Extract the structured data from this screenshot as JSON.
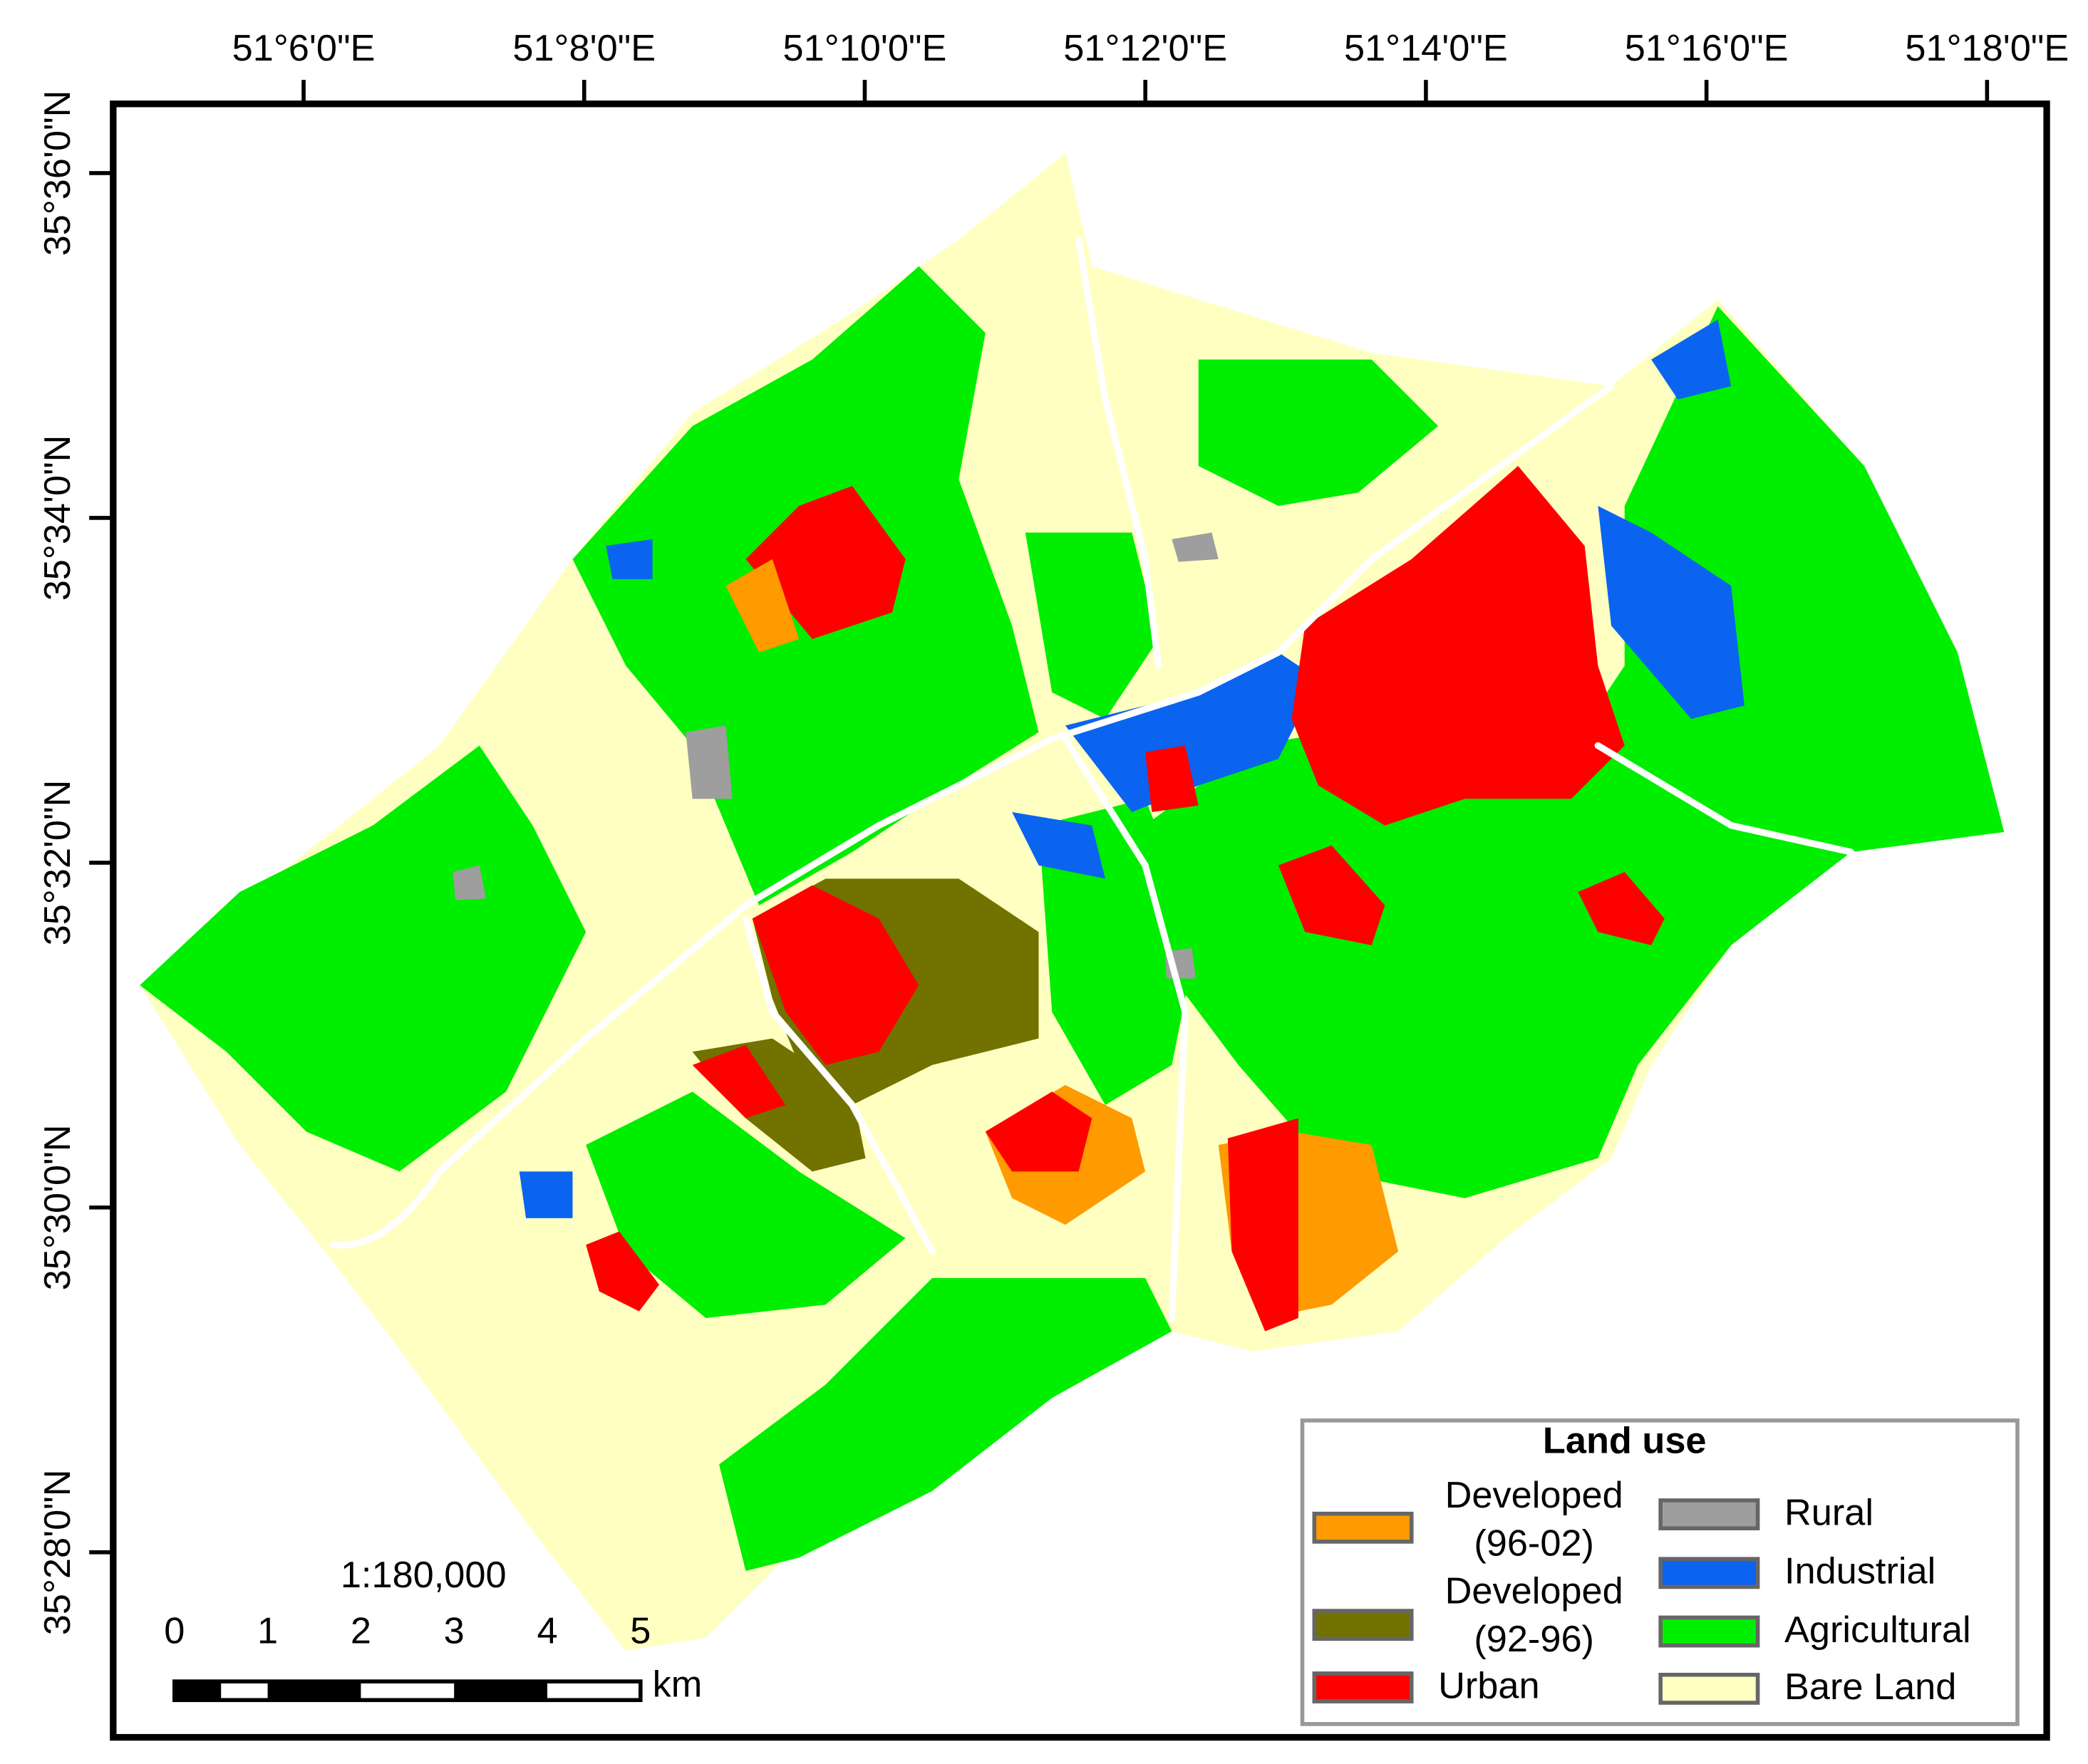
{
  "map": {
    "longitude_labels": [
      "51°6'0\"E",
      "51°8'0\"E",
      "51°10'0\"E",
      "51°12'0\"E",
      "51°14'0\"E",
      "51°16'0\"E",
      "51°18'0\"E"
    ],
    "latitude_labels": [
      "35°36'0\"N",
      "35°34'0\"N",
      "35°32'0\"N",
      "35°30'0\"N",
      "35°28'0\"N"
    ],
    "legend": {
      "title": "Land use",
      "items": [
        {
          "label": [
            "Developed",
            "(96-02)"
          ],
          "color": "#ff9a00"
        },
        {
          "label": [
            "Developed",
            "(92-96)"
          ],
          "color": "#727200"
        },
        {
          "label": [
            "Urban"
          ],
          "color": "#ff0000"
        },
        {
          "label": [
            "Rural"
          ],
          "color": "#9e9e9e"
        },
        {
          "label": [
            "Industrial"
          ],
          "color": "#0a64f0"
        },
        {
          "label": [
            "Agricultural"
          ],
          "color": "#00ee00"
        },
        {
          "label": [
            "Bare Land"
          ],
          "color": "#ffffc2"
        }
      ]
    },
    "scale": {
      "ratio": "1:180,000",
      "ticks": [
        0,
        1,
        2,
        3,
        4,
        5
      ],
      "unit": "km"
    }
  }
}
